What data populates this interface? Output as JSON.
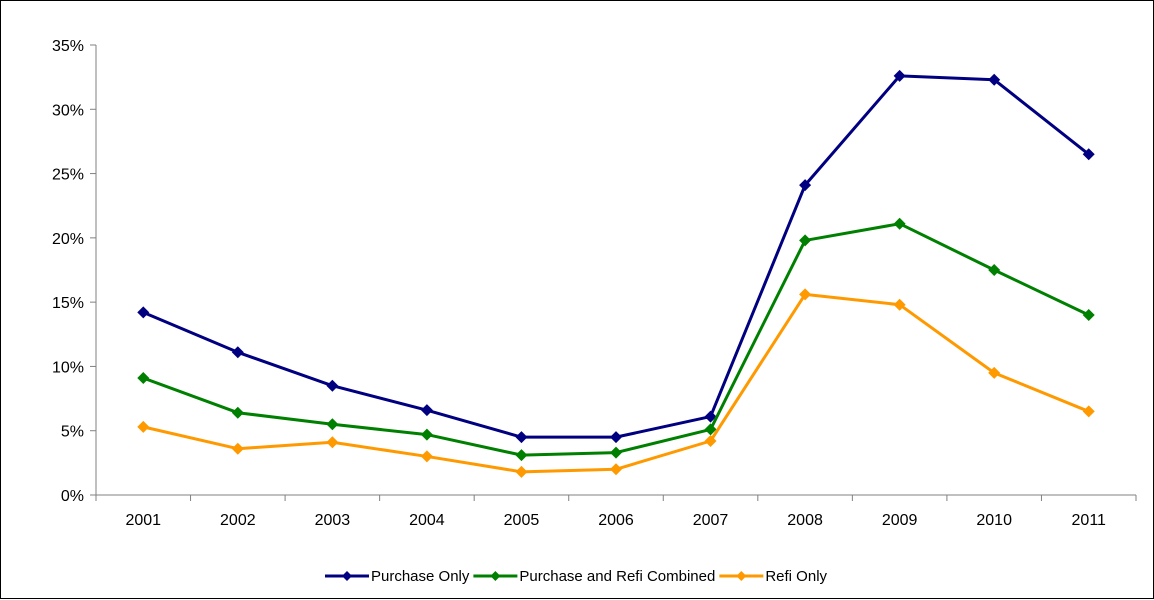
{
  "chart_data": {
    "type": "line",
    "title": "",
    "xlabel": "",
    "ylabel": "",
    "categories": [
      "2001",
      "2002",
      "2003",
      "2004",
      "2005",
      "2006",
      "2007",
      "2008",
      "2009",
      "2010",
      "2011"
    ],
    "y_ticks": [
      "0%",
      "5%",
      "10%",
      "15%",
      "20%",
      "25%",
      "30%",
      "35%"
    ],
    "ylim": [
      0,
      35
    ],
    "grid": false,
    "legend_position": "bottom",
    "marker": "diamond",
    "series": [
      {
        "name": "Purchase Only",
        "color": "#000080",
        "values": [
          14.2,
          11.1,
          8.5,
          6.6,
          4.5,
          4.5,
          6.1,
          24.1,
          32.6,
          32.3,
          26.5
        ]
      },
      {
        "name": "Purchase and Refi Combined",
        "color": "#008000",
        "values": [
          9.1,
          6.4,
          5.5,
          4.7,
          3.1,
          3.3,
          5.1,
          19.8,
          21.1,
          17.5,
          14.0
        ]
      },
      {
        "name": "Refi Only",
        "color": "#FF9900",
        "values": [
          5.3,
          3.6,
          4.1,
          3.0,
          1.8,
          2.0,
          4.2,
          15.6,
          14.8,
          9.5,
          6.5
        ]
      }
    ]
  }
}
